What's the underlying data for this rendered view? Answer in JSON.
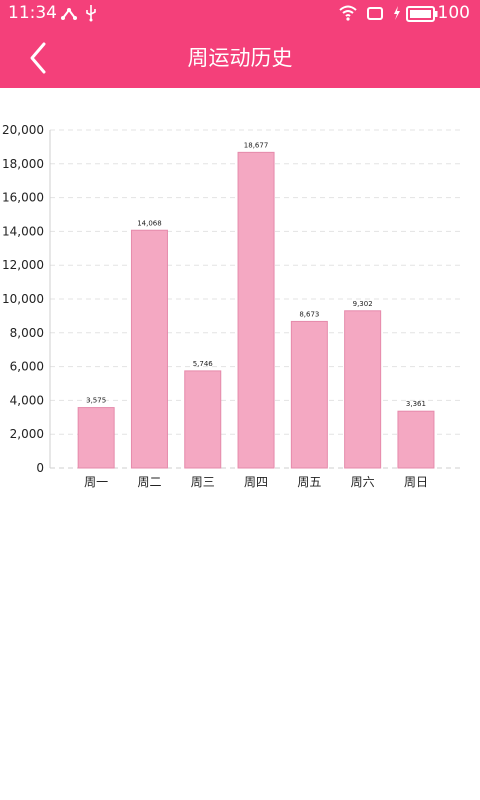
{
  "status": {
    "time": "11:34",
    "battery": "100"
  },
  "header": {
    "title": "周运动历史",
    "back_icon": "chevron-left-icon"
  },
  "colors": {
    "accent": "#f4407a",
    "bar": "#f4a8c2",
    "bar_stroke": "#e58aab",
    "grid": "#e3e3e3"
  },
  "chart_data": {
    "type": "bar",
    "categories": [
      "周一",
      "周二",
      "周三",
      "周四",
      "周五",
      "周六",
      "周日"
    ],
    "values": [
      3575,
      14068,
      5746,
      18677,
      8673,
      9302,
      3361
    ],
    "value_labels": [
      "3,575",
      "14,068",
      "5,746",
      "18,677",
      "8,673",
      "9,302",
      "3,361"
    ],
    "yticks": [
      "0",
      "2,000",
      "4,000",
      "6,000",
      "8,000",
      "10,000",
      "12,000",
      "14,000",
      "16,000",
      "18,000",
      "20,000"
    ],
    "ylim": [
      0,
      20000
    ],
    "grid": true,
    "grid_style": "dashed"
  }
}
